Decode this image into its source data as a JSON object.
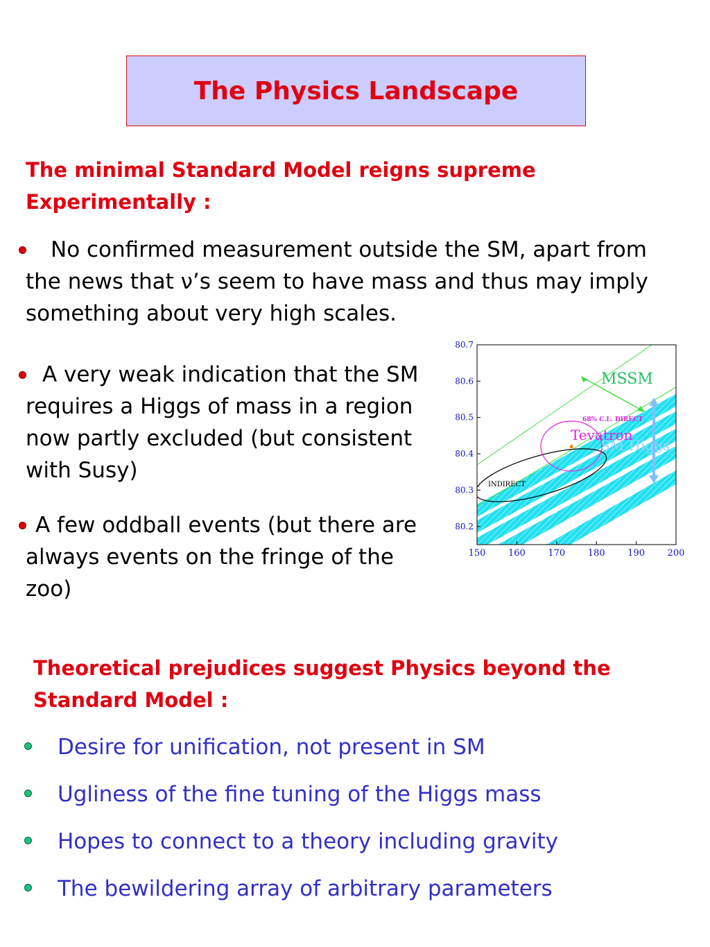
{
  "title": "The Physics Landscape",
  "section1": {
    "heading": "The minimal Standard Model reigns supreme Experimentally :",
    "bullets": [
      "No confirmed measurement outside the SM, apart from the news that ν’s seem to have mass and thus may imply something about very high scales.",
      "A very weak indication that the SM requires a Higgs of mass in a region now partly excluded (but consistent with Susy)",
      "A few oddball events (but there are always events on the fringe of the zoo)"
    ]
  },
  "figure": {
    "xlim": [
      150,
      200
    ],
    "ylim": [
      80.15,
      80.7
    ],
    "xticks": [
      150,
      160,
      170,
      180,
      190,
      200
    ],
    "yticks": [
      80.2,
      80.3,
      80.4,
      80.5,
      80.6,
      80.7
    ],
    "labels": {
      "mssm": "MSSM",
      "direct": "68% C.L. DIRECT",
      "tevatron": "Tevatron",
      "sm_higgs": "SM Higgs",
      "indirect": "INDIRECT"
    },
    "point": {
      "x": 173.7,
      "y": 80.42
    }
  },
  "section2": {
    "heading": "Theoretical prejudices suggest Physics beyond the Standard Model :",
    "bullets": [
      "Desire for unification, not present in SM",
      "Ugliness of the fine tuning of the Higgs mass",
      "Hopes to connect to a theory including gravity",
      "The bewildering array of arbitrary parameters"
    ]
  }
}
